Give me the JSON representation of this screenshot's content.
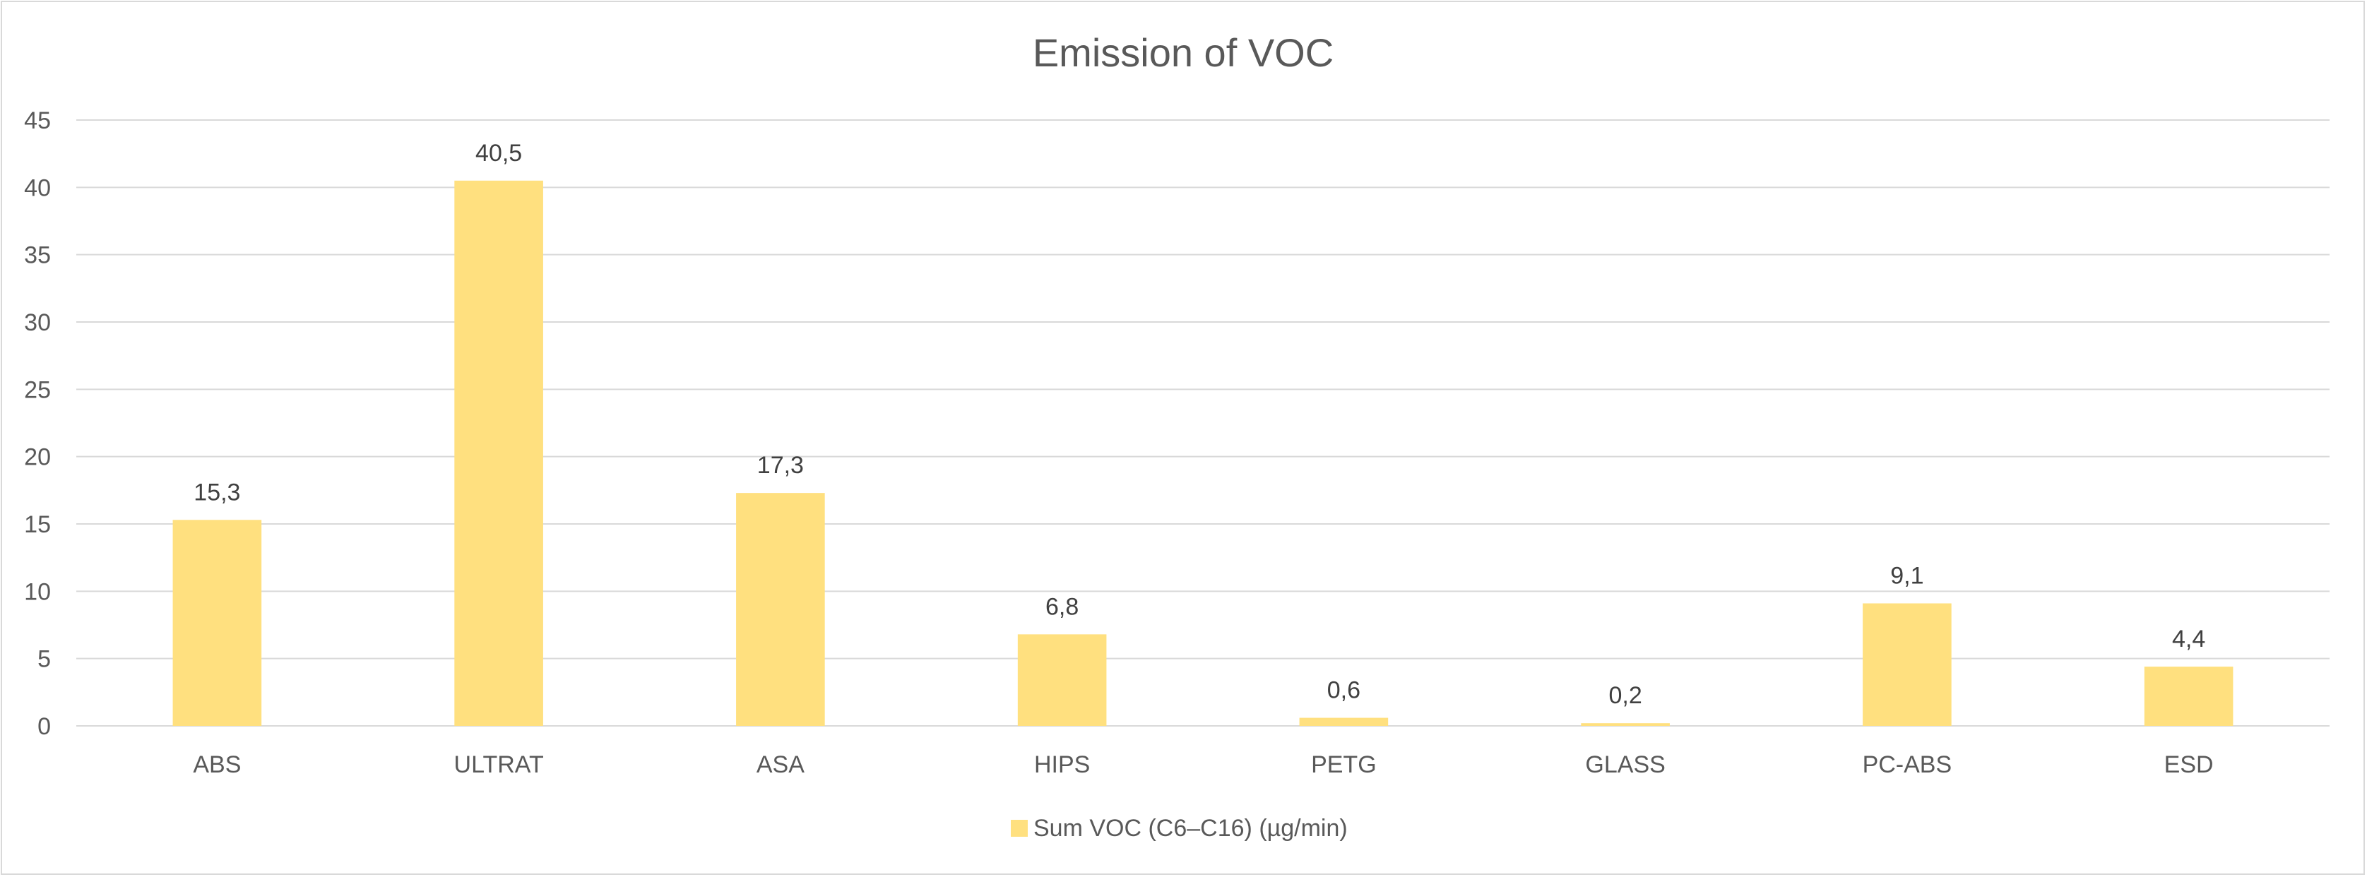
{
  "chart_data": {
    "type": "bar",
    "title": "Emission of VOC",
    "xlabel": "",
    "ylabel": "",
    "categories": [
      "ABS",
      "ULTRAT",
      "ASA",
      "HIPS",
      "PETG",
      "GLASS",
      "PC-ABS",
      "ESD"
    ],
    "series": [
      {
        "name": "Sum VOC (C6–C16) (µg/min)",
        "values": [
          15.3,
          40.5,
          17.3,
          6.8,
          0.6,
          0.2,
          9.1,
          4.4
        ],
        "labels": [
          "15,3",
          "40,5",
          "17,3",
          "6,8",
          "0,6",
          "0,2",
          "9,1",
          "4,4"
        ],
        "color": "#FFE07F"
      }
    ],
    "ylim": [
      0,
      45
    ],
    "yticks": [
      0,
      5,
      10,
      15,
      20,
      25,
      30,
      35,
      40,
      45
    ],
    "grid": true,
    "legend": "bottom"
  }
}
